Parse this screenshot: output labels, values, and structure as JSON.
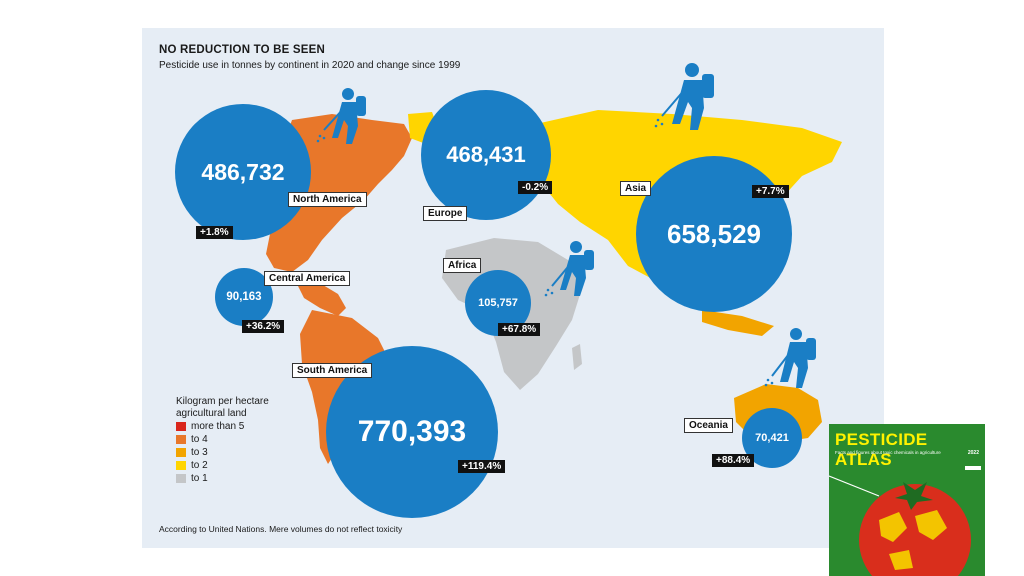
{
  "title": "NO REDUCTION TO BE SEEN",
  "subtitle": "Pesticide use in tonnes by continent in 2020 and change since 1999",
  "regions": [
    {
      "name": "North America",
      "tonnes": "486,732",
      "change": "+1.8%"
    },
    {
      "name": "Central America",
      "tonnes": "90,163",
      "change": "+36.2%"
    },
    {
      "name": "South America",
      "tonnes": "770,393",
      "change": "+119.4%"
    },
    {
      "name": "Europe",
      "tonnes": "468,431",
      "change": "-0.2%"
    },
    {
      "name": "Africa",
      "tonnes": "105,757",
      "change": "+67.8%"
    },
    {
      "name": "Asia",
      "tonnes": "658,529",
      "change": "+7.7%"
    },
    {
      "name": "Oceania",
      "tonnes": "70,421",
      "change": "+88.4%"
    }
  ],
  "legend": {
    "title": "Kilogram per hectare agricultural land",
    "items": [
      {
        "label": "more than 5",
        "color": "#d9261c"
      },
      {
        "label": "to 4",
        "color": "#e8772a"
      },
      {
        "label": "to 3",
        "color": "#f2a400"
      },
      {
        "label": "to 2",
        "color": "#ffd500"
      },
      {
        "label": "to 1",
        "color": "#c4c6c8"
      }
    ]
  },
  "footnote": "According to United Nations. Mere volumes do not reflect toxicity",
  "colors": {
    "bubble": "#1a7ec5",
    "background": "#e6edf5",
    "farmer": "#1a7ec5"
  },
  "icons": [
    "pesticide-sprayer-farmer-icon"
  ],
  "cover": {
    "title": "PESTICIDE ATLAS",
    "subtitle": "Facts and figures about toxic chemicals in agriculture",
    "year": "2022"
  }
}
